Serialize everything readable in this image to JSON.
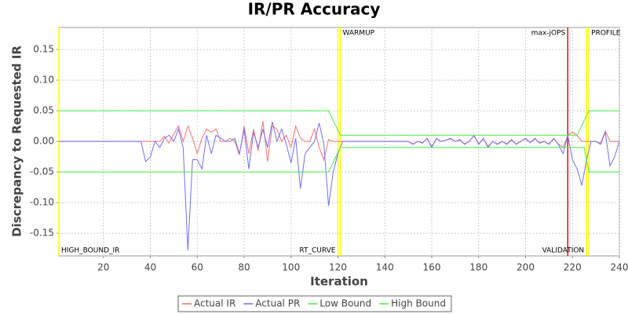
{
  "chart_data": {
    "type": "line",
    "title": "IR/PR Accuracy",
    "x_label": "Iteration",
    "y_label": "Discrepancy to Requested IR",
    "xlim": [
      1,
      240
    ],
    "ylim": [
      -0.187,
      0.186
    ],
    "xticks": [
      20,
      40,
      60,
      80,
      100,
      120,
      140,
      160,
      180,
      200,
      220,
      240
    ],
    "yticks": [
      0.15,
      {
        "value": 0.1,
        "label": "0.10"
      },
      0.05,
      {
        "value": 0,
        "label": "0.00"
      },
      -0.05,
      {
        "value": -0.1,
        "label": "-0.10"
      },
      -0.15
    ],
    "grid": true,
    "markers": [
      {
        "label": "HIGH_BOUND_IR",
        "x": 1,
        "color": "#ffff00",
        "label_position": "bottom-left"
      },
      {
        "label": "RT_CURVE",
        "x": 120,
        "color": "#ffff00",
        "label_position": "bottom-right"
      },
      {
        "label": "WARMUP",
        "x": 121,
        "color": "#ffff00",
        "label_position": "top-left"
      },
      {
        "label": "max-jOPS",
        "x": 218,
        "color": "#ff0000",
        "label_position": "top-right"
      },
      {
        "label": "VALIDATION",
        "x": 226,
        "color": "#ffff00",
        "label_position": "bottom-right"
      },
      {
        "label": "PROFILE",
        "x": 227,
        "color": "#ffff00",
        "label_position": "top-left"
      }
    ],
    "series": [
      {
        "name": "Actual IR",
        "color": "#ff6f6f",
        "x": [
          1,
          36,
          38,
          40,
          42,
          44,
          46,
          48,
          50,
          52,
          54,
          56,
          58,
          60,
          62,
          64,
          66,
          68,
          70,
          72,
          74,
          76,
          78,
          80,
          82,
          84,
          86,
          88,
          90,
          92,
          94,
          96,
          98,
          100,
          102,
          104,
          106,
          108,
          110,
          112,
          114,
          116,
          118,
          120,
          150,
          152,
          154,
          156,
          158,
          160,
          162,
          164,
          166,
          168,
          170,
          172,
          174,
          176,
          178,
          180,
          182,
          184,
          186,
          188,
          190,
          192,
          194,
          196,
          198,
          200,
          202,
          204,
          206,
          208,
          210,
          212,
          214,
          216,
          218,
          220,
          222,
          224,
          226,
          228,
          230,
          232,
          234,
          236,
          238,
          240
        ],
        "values": [
          0,
          0,
          0,
          0,
          0,
          0,
          0.008,
          -0.003,
          0.012,
          0.025,
          0,
          0.025,
          0.005,
          -0.02,
          0.005,
          0.02,
          0.015,
          0.02,
          0,
          0,
          0.005,
          0,
          -0.022,
          0.025,
          -0.02,
          0.02,
          -0.015,
          0.033,
          -0.033,
          0.025,
          0.02,
          0,
          0.01,
          -0.01,
          0.025,
          0.005,
          0,
          0,
          0.02,
          -0.01,
          -0.03,
          0.003,
          0,
          0,
          0,
          -0.004,
          0,
          -0.002,
          0.004,
          -0.008,
          0.004,
          0,
          0.002,
          0.004,
          0,
          0.002,
          -0.004,
          0,
          0.009,
          -0.004,
          0.004,
          -0.008,
          0,
          -0.004,
          0,
          -0.004,
          0.002,
          -0.004,
          0,
          0.004,
          -0.002,
          0.004,
          -0.002,
          0,
          -0.004,
          0.004,
          -0.004,
          -0.01,
          0.01,
          0.015,
          0.01,
          0,
          0,
          0,
          0,
          -0.003,
          0.017,
          0,
          0,
          0
        ]
      },
      {
        "name": "Actual PR",
        "color": "#6f6fff",
        "x": [
          1,
          36,
          38,
          40,
          42,
          44,
          46,
          48,
          50,
          52,
          54,
          56,
          58,
          60,
          62,
          64,
          66,
          68,
          70,
          72,
          74,
          76,
          78,
          80,
          82,
          84,
          86,
          88,
          90,
          92,
          94,
          96,
          98,
          100,
          102,
          104,
          106,
          108,
          110,
          112,
          114,
          116,
          118,
          120,
          122,
          150,
          152,
          154,
          156,
          158,
          160,
          162,
          164,
          166,
          168,
          170,
          172,
          174,
          176,
          178,
          180,
          182,
          184,
          186,
          188,
          190,
          192,
          194,
          196,
          198,
          200,
          202,
          204,
          206,
          208,
          210,
          212,
          214,
          216,
          218,
          220,
          222,
          224,
          226,
          228,
          230,
          232,
          234,
          236,
          238,
          240
        ],
        "values": [
          0,
          0,
          -0.033,
          -0.025,
          0,
          -0.01,
          0.005,
          0.01,
          0,
          0.02,
          -0.01,
          -0.178,
          -0.03,
          -0.03,
          -0.045,
          0.01,
          -0.02,
          0.01,
          0.005,
          0,
          0,
          0.005,
          -0.02,
          0.02,
          -0.045,
          0.015,
          -0.01,
          0.02,
          -0.01,
          0.032,
          0,
          0.02,
          -0.005,
          -0.035,
          0.005,
          -0.077,
          -0.02,
          -0.01,
          0,
          0.03,
          -0.005,
          -0.105,
          -0.05,
          -0.02,
          0,
          0,
          -0.005,
          0,
          -0.003,
          0.005,
          -0.01,
          0.005,
          0,
          0.002,
          0.005,
          0,
          0.003,
          -0.005,
          0,
          0.01,
          -0.005,
          0.005,
          -0.01,
          0,
          -0.005,
          0,
          -0.005,
          0.003,
          -0.005,
          0,
          0.005,
          -0.002,
          0.005,
          -0.003,
          0,
          -0.005,
          0.005,
          -0.005,
          -0.02,
          0.01,
          -0.03,
          -0.045,
          -0.072,
          -0.03,
          0,
          0,
          -0.005,
          0.015,
          -0.04,
          -0.025,
          0
        ]
      },
      {
        "name": "Low Bound",
        "color": "#44ee44",
        "x": [
          1,
          116,
          121,
          225,
          227,
          240
        ],
        "values": [
          -0.05,
          -0.05,
          -0.01,
          -0.01,
          -0.05,
          -0.05
        ]
      },
      {
        "name": "High Bound",
        "color": "#44ee44",
        "x": [
          1,
          116,
          121,
          222,
          227,
          240
        ],
        "values": [
          0.05,
          0.05,
          0.01,
          0.01,
          0.05,
          0.05
        ]
      }
    ]
  }
}
